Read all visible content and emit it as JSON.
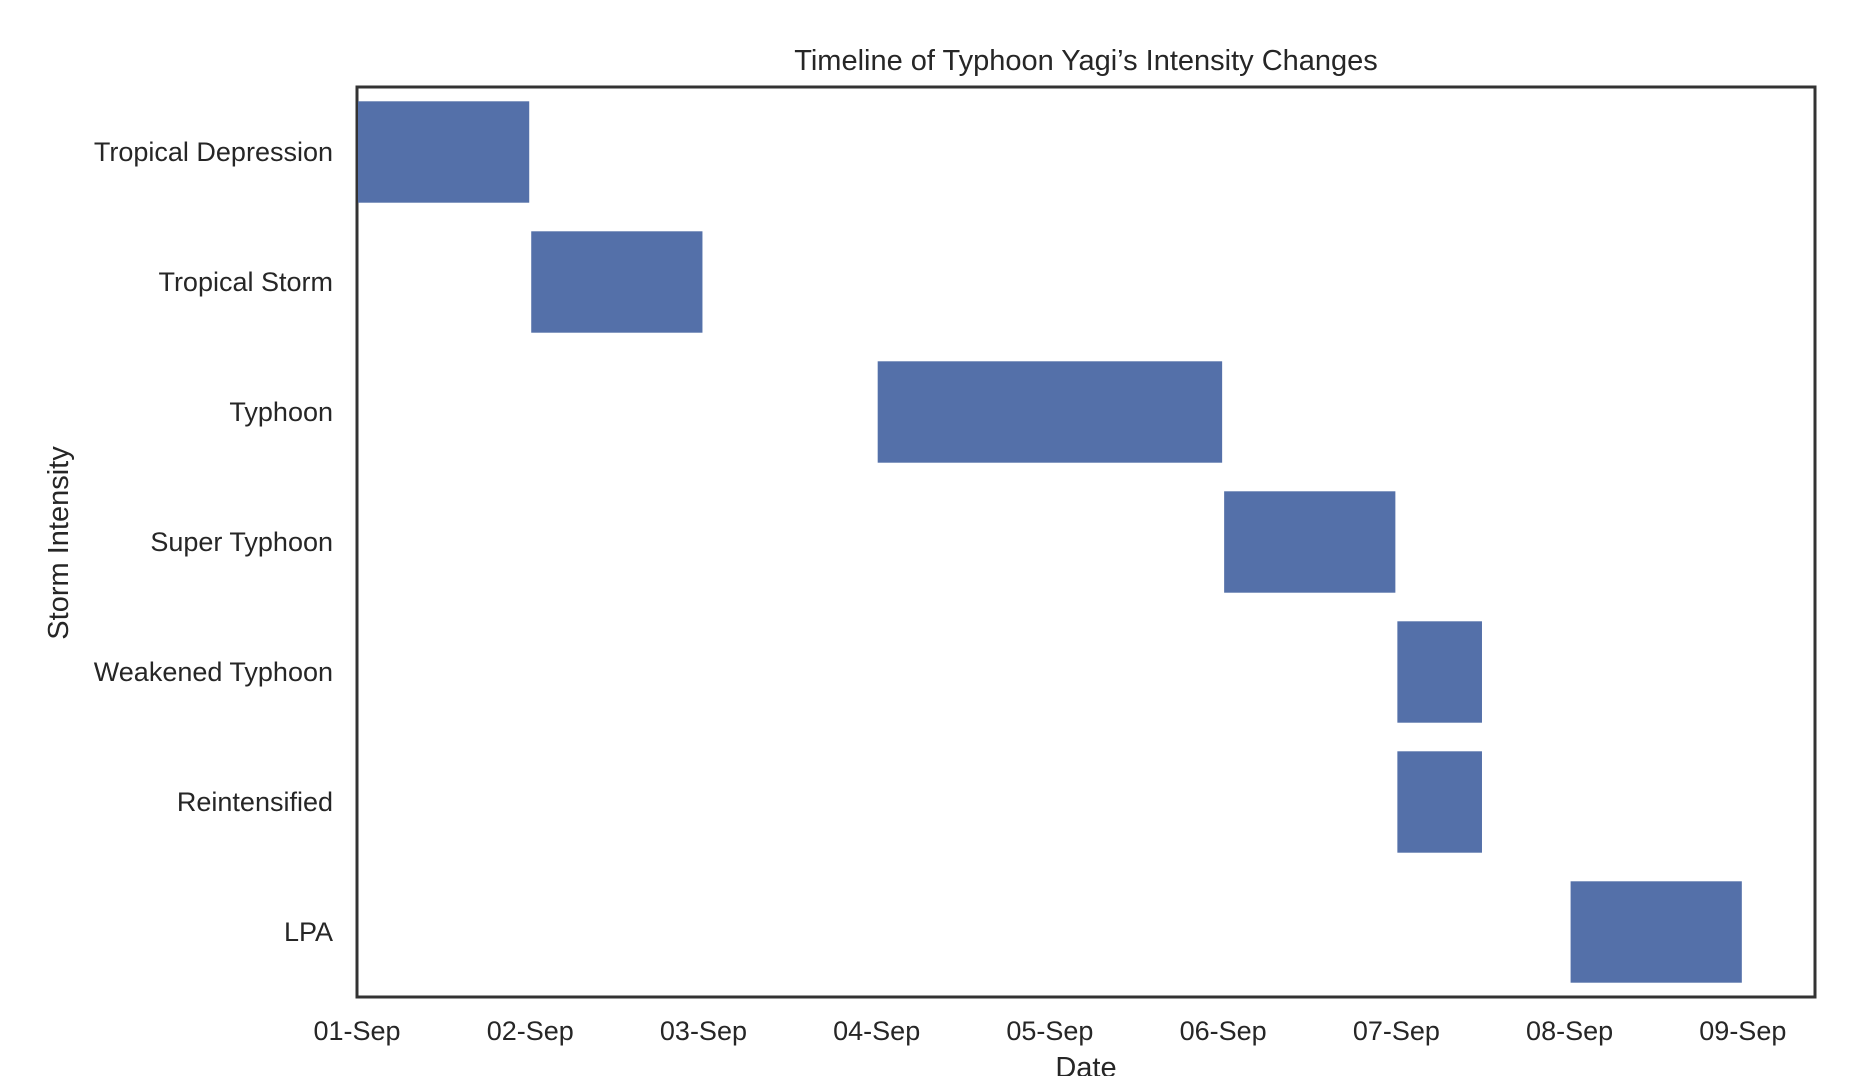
{
  "chart_data": {
    "type": "bar",
    "orientation": "horizontal-gantt",
    "title": "Timeline of Typhoon Yagi’s Intensity Changes",
    "xlabel": "Date",
    "ylabel": "Storm Intensity",
    "x_ticks": [
      "01-Sep",
      "02-Sep",
      "03-Sep",
      "04-Sep",
      "05-Sep",
      "06-Sep",
      "07-Sep",
      "08-Sep",
      "09-Sep"
    ],
    "categories": [
      "Tropical Depression",
      "Tropical Storm",
      "Typhoon",
      "Super Typhoon",
      "Weakened Typhoon",
      "Reintensified",
      "LPA"
    ],
    "intervals": [
      {
        "category": "Tropical Depression",
        "start": "01-Sep 00:00",
        "end": "02-Sep 00:00"
      },
      {
        "category": "Tropical Storm",
        "start": "02-Sep 00:00",
        "end": "03-Sep 00:00"
      },
      {
        "category": "Typhoon",
        "start": "04-Sep 00:00",
        "end": "06-Sep 00:00"
      },
      {
        "category": "Super Typhoon",
        "start": "06-Sep 00:00",
        "end": "07-Sep 00:00"
      },
      {
        "category": "Weakened Typhoon",
        "start": "07-Sep 00:00",
        "end": "07-Sep 12:00"
      },
      {
        "category": "Reintensified",
        "start": "07-Sep 00:00",
        "end": "07-Sep 12:00"
      },
      {
        "category": "LPA",
        "start": "08-Sep 00:00",
        "end": "09-Sep 00:00"
      }
    ],
    "xlim": [
      "01-Sep 00:00",
      "09-Sep 10:00"
    ],
    "grid": false,
    "legend": "none",
    "bar_color": "#5470a9",
    "frame_color": "#333333",
    "text_color": "#262626"
  }
}
